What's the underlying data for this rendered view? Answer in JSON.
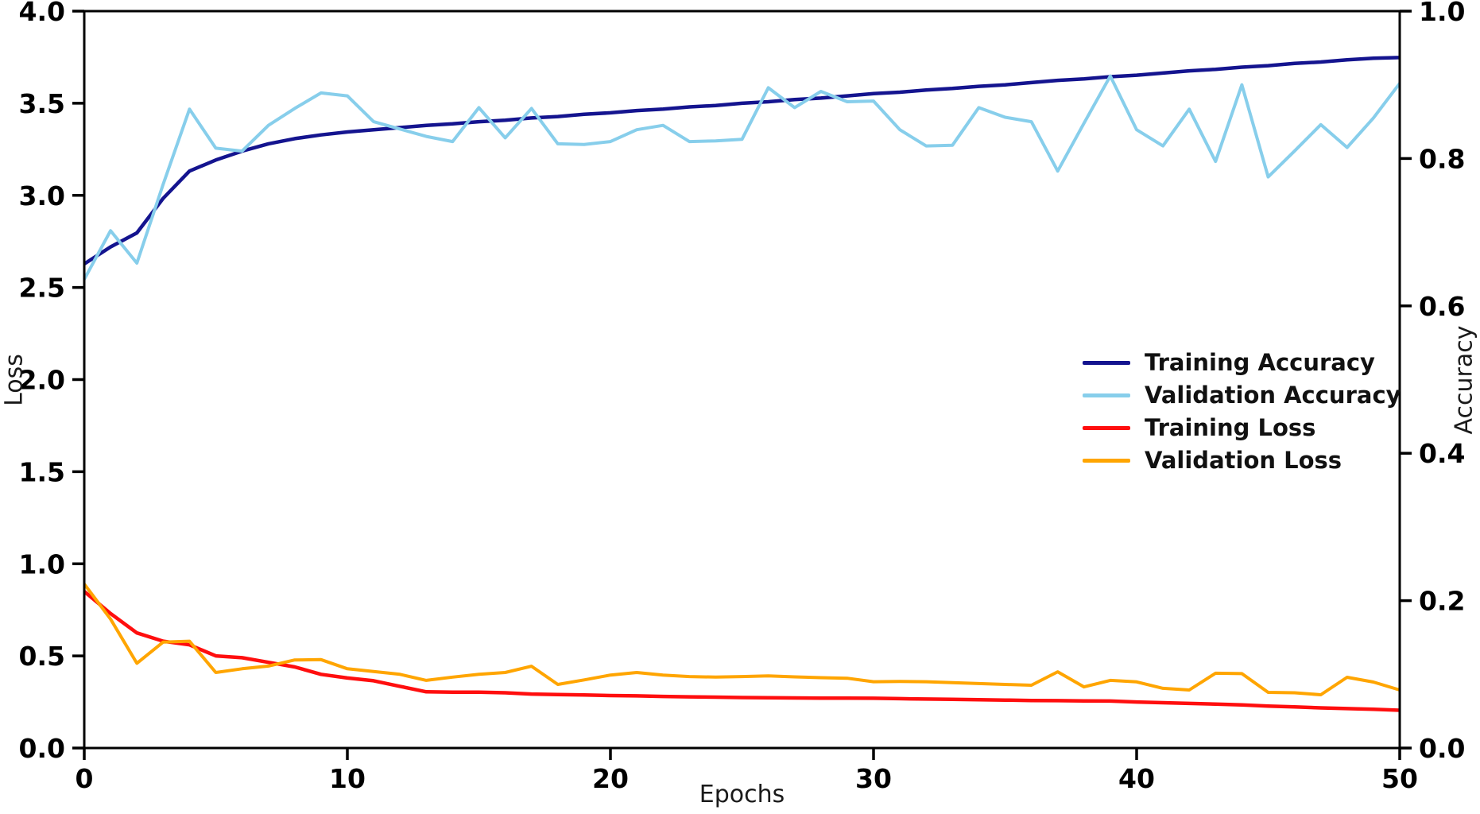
{
  "chart_data": {
    "type": "line",
    "title": "",
    "xlabel": "Epochs",
    "ylabel_left": "Loss",
    "ylabel_right": "Accuracy",
    "xlim": [
      0,
      50
    ],
    "left_ylim": [
      0.0,
      4.0
    ],
    "right_ylim": [
      0.0,
      1.0
    ],
    "grid": false,
    "legend_position": "center-right",
    "background_color": "#ffffff",
    "spine_color": "#000000",
    "epochs": [
      0,
      1,
      2,
      3,
      4,
      5,
      6,
      7,
      8,
      9,
      10,
      11,
      12,
      13,
      14,
      15,
      16,
      17,
      18,
      19,
      20,
      21,
      22,
      23,
      24,
      25,
      26,
      27,
      28,
      29,
      30,
      31,
      32,
      33,
      34,
      35,
      36,
      37,
      38,
      39,
      40,
      41,
      42,
      43,
      44,
      45,
      46,
      47,
      48,
      49,
      50
    ],
    "x_ticks": [
      {
        "v": 0,
        "label": "0"
      },
      {
        "v": 10,
        "label": "10"
      },
      {
        "v": 20,
        "label": "20"
      },
      {
        "v": 30,
        "label": "30"
      },
      {
        "v": 40,
        "label": "40"
      },
      {
        "v": 50,
        "label": "50"
      }
    ],
    "left_ticks": [
      {
        "v": 0.0,
        "label": "0.0"
      },
      {
        "v": 0.5,
        "label": "0.5"
      },
      {
        "v": 1.0,
        "label": "1.0"
      },
      {
        "v": 1.5,
        "label": "1.5"
      },
      {
        "v": 2.0,
        "label": "2.0"
      },
      {
        "v": 2.5,
        "label": "2.5"
      },
      {
        "v": 3.0,
        "label": "3.0"
      },
      {
        "v": 3.5,
        "label": "3.5"
      },
      {
        "v": 4.0,
        "label": "4.0"
      }
    ],
    "right_ticks": [
      {
        "v": 0.0,
        "label": "0.0"
      },
      {
        "v": 0.2,
        "label": "0.2"
      },
      {
        "v": 0.4,
        "label": "0.4"
      },
      {
        "v": 0.6,
        "label": "0.6"
      },
      {
        "v": 0.8,
        "label": "0.8"
      },
      {
        "v": 1.0,
        "label": "1.0"
      }
    ],
    "series": [
      {
        "name": "Training Accuracy",
        "axis": "right",
        "color": "#14148f",
        "linewidth": 4.5,
        "values": [
          0.657,
          0.68,
          0.699,
          0.746,
          0.783,
          0.798,
          0.81,
          0.82,
          0.827,
          0.832,
          0.836,
          0.839,
          0.842,
          0.845,
          0.847,
          0.85,
          0.852,
          0.855,
          0.857,
          0.86,
          0.862,
          0.865,
          0.867,
          0.87,
          0.872,
          0.875,
          0.877,
          0.88,
          0.882,
          0.885,
          0.888,
          0.89,
          0.893,
          0.895,
          0.898,
          0.9,
          0.903,
          0.906,
          0.908,
          0.911,
          0.913,
          0.916,
          0.919,
          0.921,
          0.924,
          0.926,
          0.929,
          0.931,
          0.934,
          0.936,
          0.937
        ]
      },
      {
        "name": "Validation Accuracy",
        "axis": "right",
        "color": "#87ceeb",
        "linewidth": 4,
        "values": [
          0.636,
          0.702,
          0.658,
          0.765,
          0.867,
          0.814,
          0.81,
          0.845,
          0.868,
          0.889,
          0.885,
          0.85,
          0.84,
          0.83,
          0.823,
          0.869,
          0.828,
          0.868,
          0.82,
          0.819,
          0.823,
          0.839,
          0.845,
          0.823,
          0.824,
          0.826,
          0.896,
          0.869,
          0.891,
          0.877,
          0.878,
          0.839,
          0.817,
          0.818,
          0.869,
          0.856,
          0.85,
          0.783,
          0.848,
          0.912,
          0.839,
          0.817,
          0.867,
          0.796,
          0.9,
          0.775,
          0.81,
          0.846,
          0.815,
          0.855,
          0.902
        ]
      },
      {
        "name": "Training Loss",
        "axis": "left",
        "color": "#ff0e0e",
        "linewidth": 4.5,
        "values": [
          0.85,
          0.73,
          0.625,
          0.58,
          0.56,
          0.5,
          0.49,
          0.465,
          0.44,
          0.4,
          0.38,
          0.365,
          0.335,
          0.305,
          0.303,
          0.303,
          0.3,
          0.293,
          0.29,
          0.288,
          0.285,
          0.283,
          0.28,
          0.278,
          0.276,
          0.274,
          0.273,
          0.272,
          0.271,
          0.271,
          0.27,
          0.268,
          0.266,
          0.264,
          0.262,
          0.26,
          0.258,
          0.257,
          0.256,
          0.255,
          0.25,
          0.246,
          0.242,
          0.238,
          0.234,
          0.228,
          0.223,
          0.218,
          0.214,
          0.21,
          0.205
        ]
      },
      {
        "name": "Validation Loss",
        "axis": "left",
        "color": "#ffa500",
        "linewidth": 4,
        "values": [
          0.89,
          0.7,
          0.46,
          0.575,
          0.58,
          0.41,
          0.43,
          0.445,
          0.478,
          0.48,
          0.43,
          0.415,
          0.4,
          0.367,
          0.385,
          0.4,
          0.41,
          0.444,
          0.345,
          0.37,
          0.396,
          0.41,
          0.396,
          0.388,
          0.385,
          0.388,
          0.392,
          0.386,
          0.382,
          0.379,
          0.36,
          0.361,
          0.36,
          0.355,
          0.35,
          0.345,
          0.341,
          0.414,
          0.332,
          0.367,
          0.359,
          0.324,
          0.315,
          0.406,
          0.404,
          0.302,
          0.3,
          0.289,
          0.384,
          0.358,
          0.315
        ]
      }
    ]
  }
}
